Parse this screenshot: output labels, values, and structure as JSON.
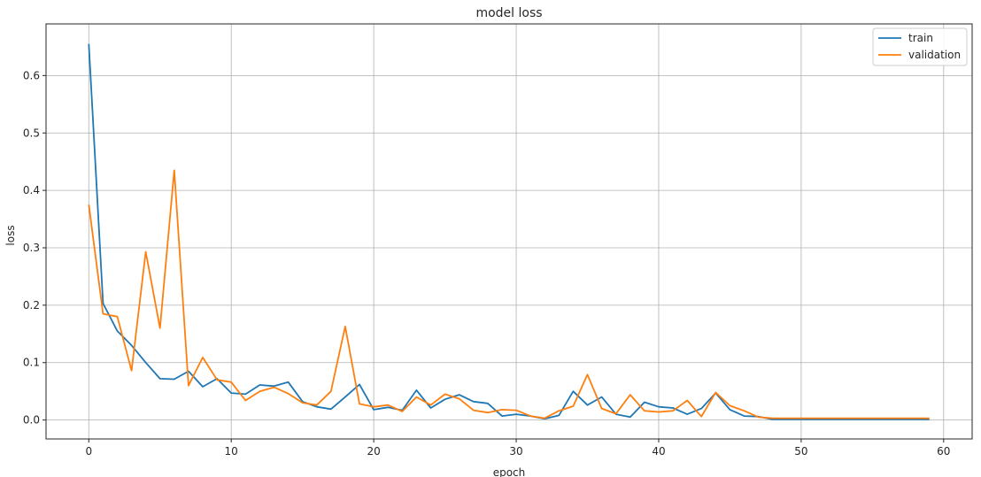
{
  "chart_data": {
    "type": "line",
    "title": "model loss",
    "xlabel": "epoch",
    "ylabel": "loss",
    "xlim": [
      -3.0,
      62.0
    ],
    "ylim": [
      -0.033,
      0.69
    ],
    "xticks": [
      0,
      10,
      20,
      30,
      40,
      50,
      60
    ],
    "yticks": [
      0.0,
      0.1,
      0.2,
      0.3,
      0.4,
      0.5,
      0.6
    ],
    "grid": true,
    "legend_position": "top-right",
    "x": [
      0,
      1,
      2,
      3,
      4,
      5,
      6,
      7,
      8,
      9,
      10,
      11,
      12,
      13,
      14,
      15,
      16,
      17,
      18,
      19,
      20,
      21,
      22,
      23,
      24,
      25,
      26,
      27,
      28,
      29,
      30,
      31,
      32,
      33,
      34,
      35,
      36,
      37,
      38,
      39,
      40,
      41,
      42,
      43,
      44,
      45,
      46,
      47,
      48,
      49,
      50,
      51,
      52,
      53,
      54,
      55,
      56,
      57,
      58,
      59
    ],
    "series": [
      {
        "name": "train",
        "color": "#1f77b4",
        "values": [
          0.655,
          0.203,
          0.155,
          0.13,
          0.1,
          0.072,
          0.071,
          0.085,
          0.058,
          0.072,
          0.047,
          0.045,
          0.061,
          0.059,
          0.066,
          0.032,
          0.023,
          0.019,
          0.04,
          0.062,
          0.018,
          0.022,
          0.017,
          0.052,
          0.021,
          0.036,
          0.044,
          0.032,
          0.029,
          0.007,
          0.01,
          0.007,
          0.002,
          0.008,
          0.05,
          0.026,
          0.04,
          0.01,
          0.005,
          0.031,
          0.023,
          0.021,
          0.01,
          0.02,
          0.047,
          0.018,
          0.007,
          0.006,
          0.001,
          0.001,
          0.001,
          0.001,
          0.001,
          0.001,
          0.001,
          0.001,
          0.001,
          0.001,
          0.001,
          0.001
        ]
      },
      {
        "name": "validation",
        "color": "#ff7f0e",
        "values": [
          0.375,
          0.185,
          0.18,
          0.086,
          0.293,
          0.16,
          0.435,
          0.06,
          0.109,
          0.07,
          0.066,
          0.034,
          0.05,
          0.057,
          0.046,
          0.03,
          0.026,
          0.05,
          0.163,
          0.028,
          0.023,
          0.026,
          0.015,
          0.04,
          0.026,
          0.045,
          0.037,
          0.017,
          0.013,
          0.018,
          0.017,
          0.007,
          0.003,
          0.016,
          0.024,
          0.079,
          0.02,
          0.011,
          0.044,
          0.016,
          0.014,
          0.016,
          0.034,
          0.006,
          0.048,
          0.025,
          0.016,
          0.005,
          0.003,
          0.003,
          0.003,
          0.003,
          0.003,
          0.003,
          0.003,
          0.003,
          0.003,
          0.003,
          0.003,
          0.003
        ]
      }
    ]
  }
}
